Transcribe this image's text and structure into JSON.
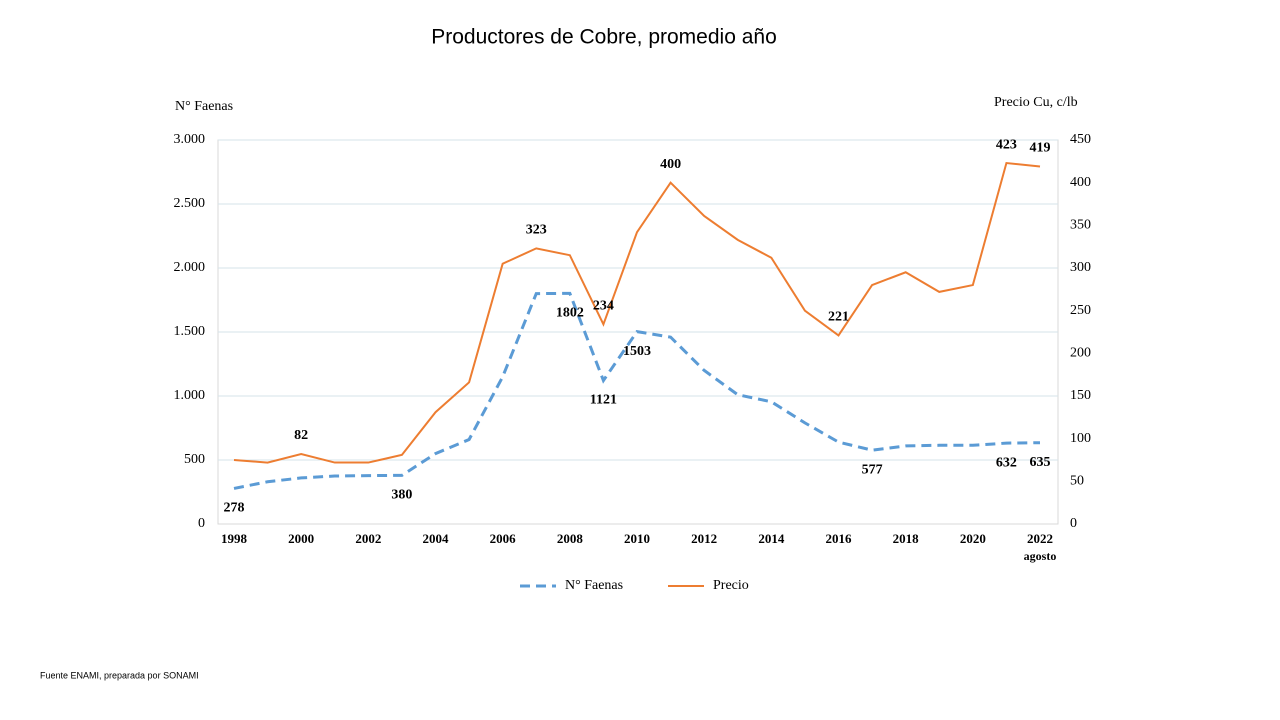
{
  "chart_data": {
    "type": "line",
    "title": "Productores de Cobre,  promedio año",
    "y_label": "N° Faenas",
    "y2_label": "Precio Cu, c/lb",
    "source": "Fuente ENAMI, preparada por SONAMI",
    "categories": [
      "1998",
      null,
      "2000",
      null,
      "2002",
      null,
      "2004",
      null,
      "2006",
      null,
      "2008",
      null,
      "2010",
      null,
      "2012",
      null,
      "2014",
      null,
      "2016",
      null,
      "2018",
      null,
      "2020",
      null,
      "2022"
    ],
    "x_note": "agosto",
    "series": [
      {
        "name": "N° Faenas",
        "color": "#5b9bd5",
        "dash": true,
        "axis": "y",
        "values": [
          278,
          330,
          360,
          375,
          378,
          380,
          550,
          660,
          1150,
          1800,
          1802,
          1121,
          1503,
          1460,
          1200,
          1010,
          955,
          790,
          640,
          577,
          610,
          615,
          615,
          632,
          635
        ],
        "labeled_points": [
          0,
          5,
          10,
          11,
          12,
          19,
          23,
          24
        ]
      },
      {
        "name": "Precio",
        "color": "#ed7d31",
        "dash": false,
        "axis": "y2",
        "values": [
          75,
          72,
          82,
          72,
          72,
          81,
          131,
          166,
          305,
          323,
          315,
          234,
          342,
          400,
          361,
          333,
          312,
          250,
          221,
          280,
          295,
          272,
          280,
          423,
          419
        ],
        "labeled_points": [
          2,
          9,
          11,
          13,
          18,
          23,
          24
        ]
      }
    ],
    "ylim": [
      0,
      3000
    ],
    "yticks": [
      0,
      500,
      {
        "value": 1000,
        "label": "1.000"
      },
      {
        "value": 1500,
        "label": "1.500"
      },
      {
        "value": 2000,
        "label": "2.000"
      },
      {
        "value": 2500,
        "label": "2.500"
      },
      {
        "value": 3000,
        "label": "3.000"
      }
    ],
    "y2lim": [
      0,
      450
    ],
    "y2ticks": [
      0,
      50,
      100,
      150,
      200,
      250,
      300,
      350,
      400,
      450
    ],
    "grid": true
  }
}
